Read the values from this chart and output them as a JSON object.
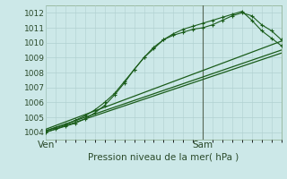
{
  "bg_color": "#cce8e8",
  "plot_bg": "#d8eeee",
  "grid_color": "#b0d0d0",
  "line_color": "#1a5c1a",
  "vline_color": "#556655",
  "ylabel": "Pression niveau de la mer( hPa )",
  "ylim": [
    1003.5,
    1012.5
  ],
  "yticks": [
    1004,
    1005,
    1006,
    1007,
    1008,
    1009,
    1010,
    1011,
    1012
  ],
  "xlim": [
    0,
    48
  ],
  "xtick_positions": [
    0,
    32
  ],
  "xtick_labels": [
    "Ven",
    "Sam"
  ],
  "vline_x": 32,
  "series": [
    {
      "x": [
        0,
        2,
        4,
        6,
        8,
        10,
        12,
        14,
        16,
        18,
        20,
        22,
        24,
        26,
        28,
        30,
        32,
        34,
        36,
        38,
        40,
        42,
        44,
        46,
        48
      ],
      "y": [
        1004.0,
        1004.2,
        1004.4,
        1004.6,
        1004.9,
        1005.3,
        1005.8,
        1006.5,
        1007.3,
        1008.2,
        1009.0,
        1009.7,
        1010.2,
        1010.5,
        1010.7,
        1010.9,
        1011.0,
        1011.2,
        1011.5,
        1011.8,
        1012.0,
        1011.8,
        1011.2,
        1010.8,
        1010.2
      ],
      "marker": true
    },
    {
      "x": [
        0,
        2,
        4,
        6,
        8,
        10,
        12,
        14,
        16,
        18,
        20,
        22,
        24,
        26,
        28,
        30,
        32,
        34,
        36,
        38,
        40,
        42,
        44,
        46,
        48
      ],
      "y": [
        1004.1,
        1004.3,
        1004.5,
        1004.8,
        1005.1,
        1005.5,
        1006.0,
        1006.6,
        1007.4,
        1008.2,
        1009.0,
        1009.6,
        1010.2,
        1010.6,
        1010.9,
        1011.1,
        1011.3,
        1011.5,
        1011.7,
        1011.9,
        1012.1,
        1011.5,
        1010.8,
        1010.3,
        1009.8
      ],
      "marker": true
    },
    {
      "x": [
        0,
        48
      ],
      "y": [
        1004.0,
        1009.3
      ],
      "marker": false
    },
    {
      "x": [
        0,
        48
      ],
      "y": [
        1004.1,
        1009.5
      ],
      "marker": false
    },
    {
      "x": [
        0,
        48
      ],
      "y": [
        1004.2,
        1010.1
      ],
      "marker": false
    }
  ]
}
